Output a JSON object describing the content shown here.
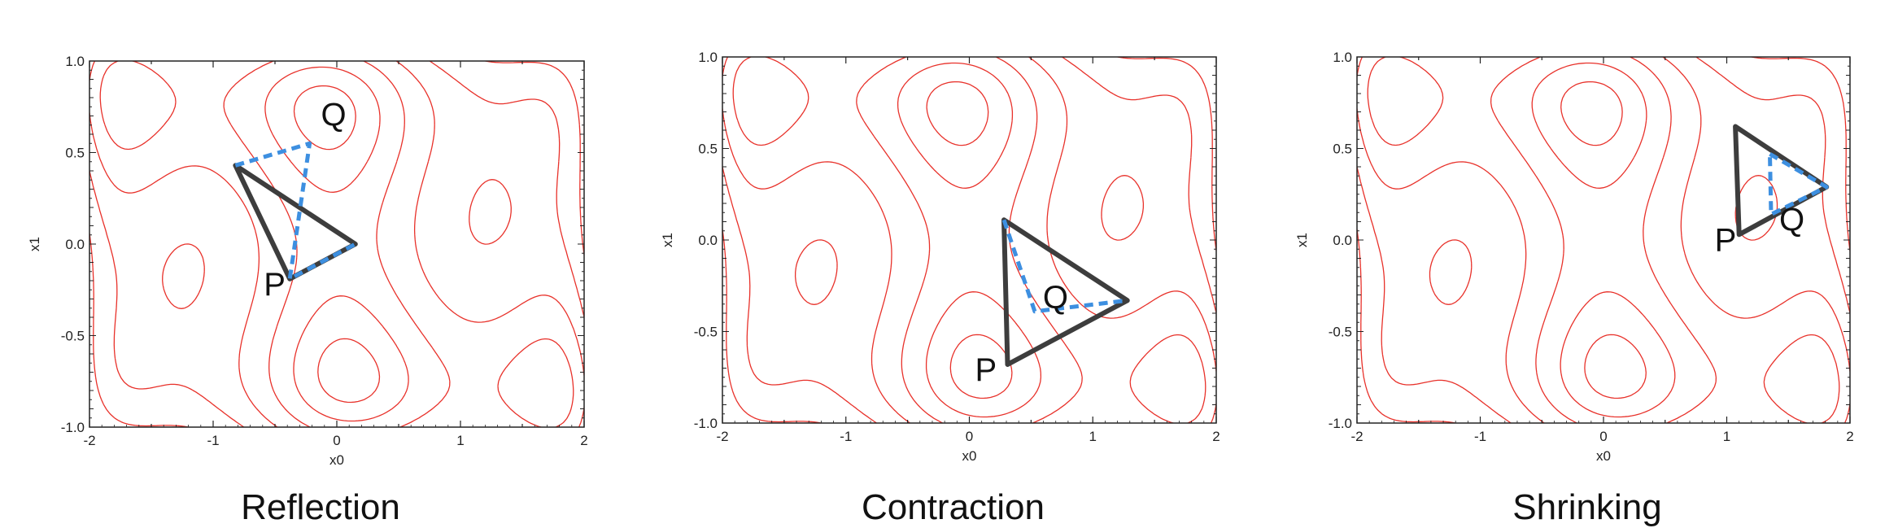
{
  "colors": {
    "contour": "#e8312a",
    "simplex": "#3d3d3d",
    "new_simplex": "#3d8fe0",
    "frame": "#222222",
    "text": "#111111"
  },
  "x_ticks": [
    "-2",
    "-1",
    "0",
    "1",
    "2"
  ],
  "y_ticks": [
    "1.0",
    "0.5",
    "0.0",
    "-0.5",
    "-1.0"
  ],
  "xlim": [
    -2,
    2
  ],
  "ylim": [
    -1,
    1
  ],
  "panels": [
    {
      "caption": "Reflection",
      "xlabel": "x0",
      "ylabel": "x1",
      "triangle": [
        [
          -0.82,
          0.43
        ],
        [
          0.15,
          0.0
        ],
        [
          -0.38,
          -0.19
        ]
      ],
      "dashed": [
        [
          -0.82,
          0.43
        ],
        [
          -0.22,
          0.55
        ],
        [
          -0.38,
          -0.19
        ],
        [
          0.15,
          0.0
        ]
      ],
      "P": {
        "label": "P",
        "x": -0.38,
        "y": -0.19
      },
      "Q": {
        "label": "Q",
        "x": -0.22,
        "y": 0.55
      }
    },
    {
      "caption": "Contraction",
      "xlabel": "x0",
      "ylabel": "x1",
      "triangle": [
        [
          0.28,
          0.11
        ],
        [
          1.28,
          -0.33
        ],
        [
          0.31,
          -0.68
        ]
      ],
      "dashed": [
        [
          0.28,
          0.11
        ],
        [
          0.53,
          -0.39
        ],
        [
          1.28,
          -0.33
        ]
      ],
      "P": {
        "label": "P",
        "x": 0.31,
        "y": -0.68
      },
      "Q": {
        "label": "Q",
        "x": 0.53,
        "y": -0.39
      }
    },
    {
      "caption": "Shrinking",
      "xlabel": "x0",
      "ylabel": "x1",
      "triangle": [
        [
          1.07,
          0.62
        ],
        [
          1.81,
          0.29
        ],
        [
          1.1,
          0.03
        ]
      ],
      "dashed": [
        [
          1.35,
          0.47
        ],
        [
          1.81,
          0.29
        ],
        [
          1.36,
          0.14
        ],
        [
          1.35,
          0.47
        ]
      ],
      "P": {
        "label": "P",
        "x": 1.1,
        "y": 0.03
      },
      "Q": {
        "label": "Q",
        "x": 1.36,
        "y": 0.14
      }
    }
  ]
}
